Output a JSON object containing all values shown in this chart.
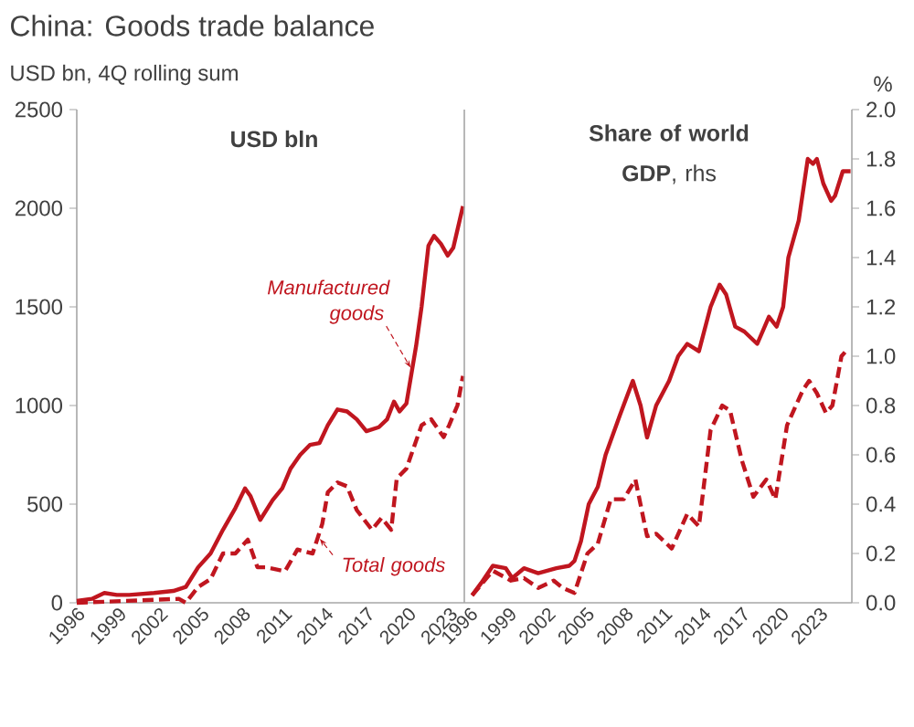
{
  "chart_data": [
    {
      "type": "line",
      "title": "China: Goods trade balance",
      "subtitle": "USD bn, 4Q rolling sum",
      "annotations": [
        "USD bln",
        {
          "text": "Manufactured goods",
          "x": 2020.3,
          "y": 1180
        },
        {
          "text": "Total goods",
          "x": 2013.5,
          "y": 335
        }
      ],
      "xlim": [
        1996,
        2024.1
      ],
      "xticks": [
        1996,
        1999,
        2002,
        2005,
        2008,
        2011,
        2014,
        2017,
        2020,
        2023
      ],
      "ylim": [
        0,
        2500
      ],
      "yticks": [
        0,
        500,
        1000,
        1500,
        2000,
        2500
      ],
      "series": [
        {
          "color": "#c0161f",
          "line_style": "solid",
          "x": [
            1996,
            1997.1,
            1998.0,
            1998.9,
            1999.8,
            2001.6,
            2003.0,
            2003.9,
            2004.8,
            2005.7,
            2006.6,
            2007.5,
            2008.2,
            2008.6,
            2009.3,
            2010.2,
            2010.9,
            2011.5,
            2012.2,
            2012.9,
            2013.6,
            2014.2,
            2014.9,
            2015.6,
            2016.3,
            2017.0,
            2017.9,
            2018.5,
            2019.0,
            2019.4,
            2019.9,
            2020.6,
            2021.0,
            2021.5,
            2021.9,
            2022.4,
            2022.9,
            2023.3,
            2024.0
          ],
          "values": [
            10,
            20,
            50,
            40,
            40,
            50,
            60,
            80,
            180,
            250,
            370,
            480,
            580,
            540,
            420,
            520,
            580,
            680,
            750,
            800,
            810,
            900,
            980,
            970,
            930,
            870,
            890,
            930,
            1020,
            970,
            1010,
            1300,
            1500,
            1810,
            1860,
            1820,
            1760,
            1800,
            2010
          ]
        },
        {
          "color": "#c0161f",
          "line_style": "dashed",
          "x": [
            1996,
            2003.4,
            2003.9,
            2004.8,
            2005.7,
            2006.6,
            2007.5,
            2008.4,
            2009.1,
            2009.7,
            2011.1,
            2012.0,
            2013.1,
            2013.8,
            2014.2,
            2014.9,
            2015.6,
            2016.3,
            2017.4,
            2018.1,
            2018.8,
            2019.2,
            2019.9,
            2021.0,
            2021.7,
            2022.6,
            2023.0,
            2023.6,
            2024.0
          ],
          "values": [
            0,
            20,
            0,
            80,
            120,
            250,
            250,
            320,
            180,
            180,
            160,
            270,
            250,
            400,
            560,
            610,
            590,
            470,
            370,
            430,
            370,
            630,
            680,
            900,
            930,
            840,
            900,
            1000,
            1150
          ]
        }
      ]
    },
    {
      "type": "line",
      "title": "**Share of world GDP**, rhs",
      "ylabel": "%",
      "xlim": [
        1995.6,
        2025.5
      ],
      "xticks": [
        1996,
        1999,
        2002,
        2005,
        2008,
        2011,
        2014,
        2017,
        2020,
        2023
      ],
      "ylim": [
        0,
        2
      ],
      "yticks": [
        {
          "value": 0,
          "label": "0.0"
        },
        0.2,
        0.4,
        0.6,
        0.8,
        {
          "value": 1,
          "label": "1.0"
        },
        1.2,
        1.4,
        1.6,
        1.8,
        {
          "value": 2,
          "label": "2.0"
        }
      ],
      "series": [
        {
          "color": "#c0161f",
          "line_style": "solid",
          "x": [
            1996.2,
            1996.9,
            1997.8,
            1998.8,
            1999.3,
            2000.2,
            2001.3,
            2002.7,
            2003.7,
            2004.1,
            2004.6,
            2005.2,
            2005.9,
            2006.5,
            2007.6,
            2008.6,
            2009.2,
            2009.7,
            2010.4,
            2011.4,
            2012.1,
            2012.8,
            2013.7,
            2014.6,
            2015.3,
            2015.8,
            2016.5,
            2017.2,
            2018.2,
            2019.1,
            2019.7,
            2020.2,
            2020.6,
            2021.4,
            2022.1,
            2022.5,
            2022.8,
            2023.3,
            2023.9,
            2024.2,
            2024.8,
            2025.4
          ],
          "values": [
            0.03,
            0.08,
            0.15,
            0.14,
            0.1,
            0.14,
            0.12,
            0.14,
            0.15,
            0.17,
            0.25,
            0.4,
            0.47,
            0.6,
            0.76,
            0.9,
            0.8,
            0.67,
            0.8,
            0.9,
            1.0,
            1.05,
            1.02,
            1.2,
            1.29,
            1.25,
            1.12,
            1.1,
            1.05,
            1.16,
            1.12,
            1.2,
            1.4,
            1.55,
            1.8,
            1.78,
            1.8,
            1.7,
            1.63,
            1.65,
            1.75,
            1.75
          ]
        },
        {
          "color": "#c0161f",
          "line_style": "dashed",
          "x": [
            1996.2,
            1997.8,
            1999.2,
            2000.2,
            2001.3,
            2002.5,
            2003.2,
            2004.1,
            2005.1,
            2005.9,
            2006.9,
            2007.9,
            2008.8,
            2009.7,
            2010.4,
            2011.6,
            2012.8,
            2013.7,
            2014.6,
            2015.5,
            2016.1,
            2017.0,
            2017.9,
            2018.9,
            2019.6,
            2020.5,
            2021.7,
            2022.2,
            2022.8,
            2023.5,
            2024.0,
            2024.7,
            2025.2
          ],
          "values": [
            0.03,
            0.13,
            0.09,
            0.1,
            0.06,
            0.09,
            0.06,
            0.04,
            0.2,
            0.24,
            0.42,
            0.42,
            0.5,
            0.27,
            0.28,
            0.22,
            0.36,
            0.31,
            0.7,
            0.8,
            0.78,
            0.58,
            0.43,
            0.5,
            0.42,
            0.72,
            0.86,
            0.9,
            0.85,
            0.77,
            0.8,
            1.0,
            1.03
          ]
        }
      ]
    }
  ]
}
